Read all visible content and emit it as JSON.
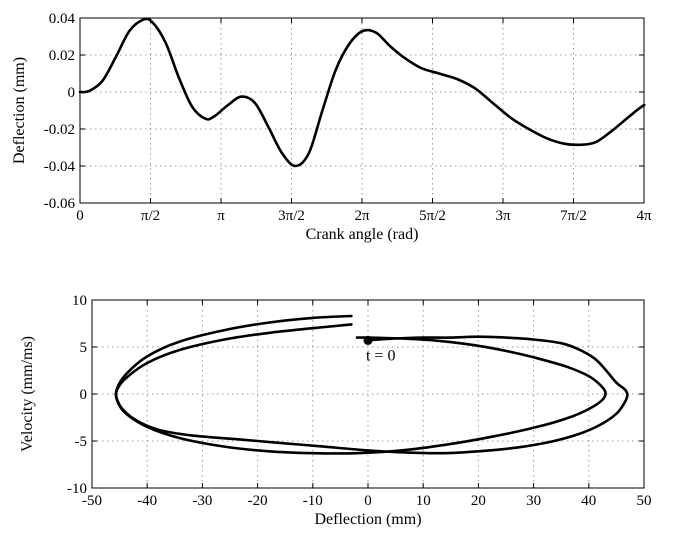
{
  "chart_data": [
    {
      "type": "line",
      "xlabel": "Crank angle (rad)",
      "ylabel": "Deflection (mm)",
      "xlim": [
        0,
        12.566
      ],
      "ylim": [
        -0.06,
        0.04
      ],
      "grid": true,
      "xticks": [
        0,
        1.5708,
        3.1416,
        4.7124,
        6.2832,
        7.854,
        9.4248,
        10.9956,
        12.5664
      ],
      "xtick_labels": [
        "0",
        "π/2",
        "π",
        "3π/2",
        "2π",
        "5π/2",
        "3π",
        "7π/2",
        "4π"
      ],
      "yticks": [
        -0.06,
        -0.04,
        -0.02,
        0,
        0.02,
        0.04
      ],
      "ytick_labels": [
        "-0.06",
        "-0.04",
        "-0.02",
        "0",
        "0.02",
        "0.04"
      ],
      "series": [
        {
          "x": [
            0,
            0.2,
            0.5,
            0.8,
            1.1,
            1.4,
            1.6,
            1.9,
            2.2,
            2.5,
            2.8,
            3.0,
            3.3,
            3.6,
            3.9,
            4.2,
            4.5,
            4.8,
            5.1,
            5.4,
            5.7,
            6.0,
            6.3,
            6.6,
            6.9,
            7.2,
            7.6,
            8.0,
            8.4,
            8.8,
            9.2,
            9.6,
            10.0,
            10.4,
            10.8,
            11.2,
            11.5,
            11.8,
            12.1,
            12.4,
            12.57
          ],
          "y": [
            0.0,
            0.0005,
            0.006,
            0.019,
            0.033,
            0.039,
            0.038,
            0.027,
            0.008,
            -0.008,
            -0.0145,
            -0.013,
            -0.007,
            -0.0025,
            -0.006,
            -0.019,
            -0.033,
            -0.04,
            -0.033,
            -0.01,
            0.012,
            0.026,
            0.033,
            0.032,
            0.025,
            0.019,
            0.013,
            0.01,
            0.007,
            0.002,
            -0.006,
            -0.014,
            -0.02,
            -0.025,
            -0.028,
            -0.0285,
            -0.027,
            -0.022,
            -0.016,
            -0.01,
            -0.007
          ]
        }
      ]
    },
    {
      "type": "line",
      "xlabel": "Deflection (mm)",
      "ylabel": "Velocity (mm/ms)",
      "xlim": [
        -50,
        50
      ],
      "ylim": [
        -10,
        10
      ],
      "grid": true,
      "xticks": [
        -50,
        -40,
        -30,
        -20,
        -10,
        0,
        10,
        20,
        30,
        40,
        50
      ],
      "xtick_labels": [
        "-50",
        "-40",
        "-30",
        "-20",
        "-10",
        "0",
        "10",
        "20",
        "30",
        "40",
        "50"
      ],
      "yticks": [
        -10,
        -5,
        0,
        5,
        10
      ],
      "ytick_labels": [
        "-10",
        "-5",
        "0",
        "5",
        "10"
      ],
      "annotations": [
        {
          "text": "t = 0",
          "x": 0,
          "y": 5.7
        }
      ],
      "series": [
        {
          "x": [
            0,
            2,
            5,
            10,
            15,
            20,
            25,
            30,
            35,
            38,
            41,
            43,
            45,
            46.5,
            47,
            46.5,
            45,
            42,
            38,
            33,
            27,
            20,
            13,
            6,
            0,
            -8,
            -16,
            -24,
            -32,
            -38,
            -42,
            -44.5,
            -45.5,
            -45.5,
            -44,
            -40,
            -34,
            -26,
            -18,
            -10,
            -3
          ],
          "y": [
            5.7,
            5.8,
            5.9,
            6.0,
            6.0,
            6.1,
            6.0,
            5.8,
            5.4,
            4.8,
            3.8,
            2.6,
            1.2,
            0.5,
            -0.1,
            -0.9,
            -2.1,
            -3.3,
            -4.3,
            -5.1,
            -5.7,
            -6.1,
            -6.3,
            -6.2,
            -6.0,
            -5.6,
            -5.2,
            -4.8,
            -4.4,
            -3.8,
            -2.8,
            -1.6,
            -0.5,
            0.4,
            1.6,
            3.3,
            4.7,
            5.8,
            6.5,
            7.0,
            7.4
          ]
        },
        {
          "x": [
            -3,
            -10,
            -18,
            -26,
            -34,
            -40,
            -44,
            -45.5,
            -45.5,
            -44,
            -40,
            -34,
            -26,
            -18,
            -10,
            -2,
            6,
            14,
            22,
            30,
            36,
            40,
            42.5,
            43,
            42,
            40,
            36,
            30,
            24,
            18,
            12,
            6,
            0,
            -2
          ],
          "y": [
            8.3,
            8.1,
            7.6,
            6.8,
            5.6,
            4.0,
            2.0,
            0.5,
            -0.6,
            -2.0,
            -3.5,
            -4.7,
            -5.6,
            -6.1,
            -6.3,
            -6.3,
            -6.0,
            -5.4,
            -4.6,
            -3.6,
            -2.6,
            -1.6,
            -0.6,
            0.2,
            1.0,
            1.9,
            2.9,
            3.9,
            4.7,
            5.3,
            5.7,
            5.9,
            6.0,
            6.0
          ]
        }
      ]
    }
  ]
}
